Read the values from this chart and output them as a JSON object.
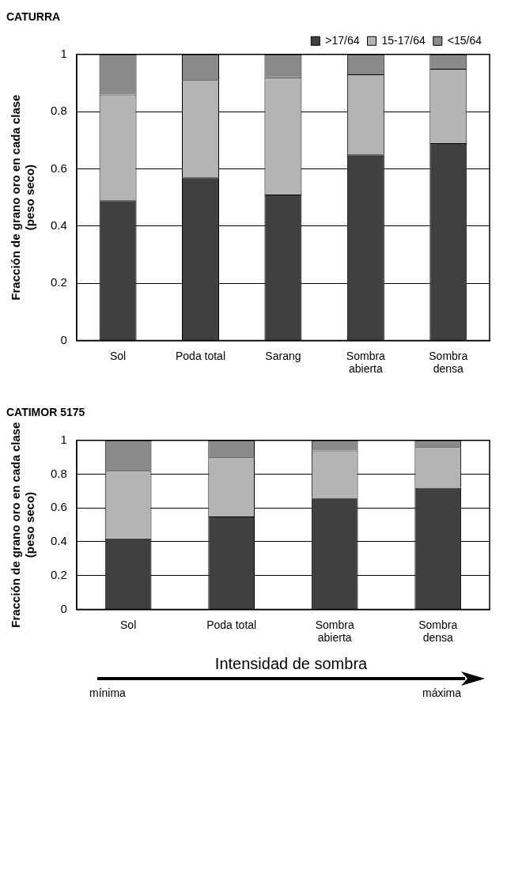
{
  "chart_data": [
    {
      "type": "bar",
      "stacked": true,
      "title": "CATURRA",
      "ylabel": "Fracción de grano oro en cada clase (peso seco)",
      "categories": [
        "Sol",
        "Poda total",
        "Sarang",
        "Sombra abierta",
        "Sombra densa"
      ],
      "series": [
        {
          "name": ">17/64",
          "color": "#404040",
          "values": [
            0.49,
            0.57,
            0.51,
            0.65,
            0.69
          ]
        },
        {
          "name": "15-17/64",
          "color": "#b4b4b4",
          "values": [
            0.37,
            0.34,
            0.41,
            0.28,
            0.26
          ]
        },
        {
          "name": "<15/64",
          "color": "#8a8a8a",
          "values": [
            0.14,
            0.09,
            0.08,
            0.07,
            0.05
          ]
        }
      ],
      "ylim": [
        0,
        1
      ],
      "yticks": [
        0,
        0.2,
        0.4,
        0.6,
        0.8,
        1
      ],
      "grid": "y",
      "legend": "top right"
    },
    {
      "type": "bar",
      "stacked": true,
      "title": "CATIMOR 5175",
      "ylabel": "Fracción de grano oro en cada clase (peso seco)",
      "xlabel": "Intensidad de sombra",
      "categories": [
        "Sol",
        "Poda total",
        "Sombra abierta",
        "Sombra densa"
      ],
      "series": [
        {
          "color": "#404040",
          "values": [
            0.42,
            0.55,
            0.66,
            0.72
          ]
        },
        {
          "color": "#b4b4b4",
          "values": [
            0.4,
            0.35,
            0.28,
            0.24
          ]
        },
        {
          "color": "#8a8a8a",
          "values": [
            0.18,
            0.1,
            0.06,
            0.04
          ]
        }
      ],
      "ylim": [
        0,
        1
      ],
      "yticks": [
        0,
        0.2,
        0.4,
        0.6,
        0.8,
        1
      ],
      "grid": "y",
      "annotations": [
        "mínima",
        "máxima"
      ]
    }
  ]
}
